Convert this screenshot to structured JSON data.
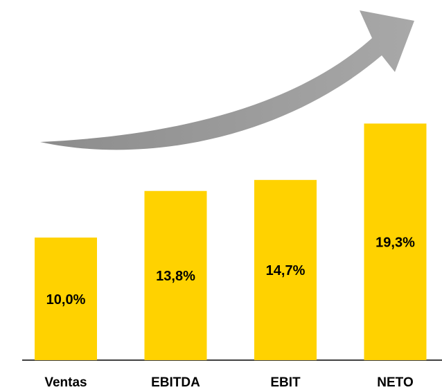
{
  "chart_data": {
    "type": "bar",
    "categories": [
      "Ventas",
      "EBITDA",
      "EBIT",
      "NETO"
    ],
    "values": [
      10.0,
      13.8,
      14.7,
      19.3
    ],
    "value_labels": [
      "10,0%",
      "13,8%",
      "14,7%",
      "19,3%"
    ],
    "color": "#ffd200"
  }
}
